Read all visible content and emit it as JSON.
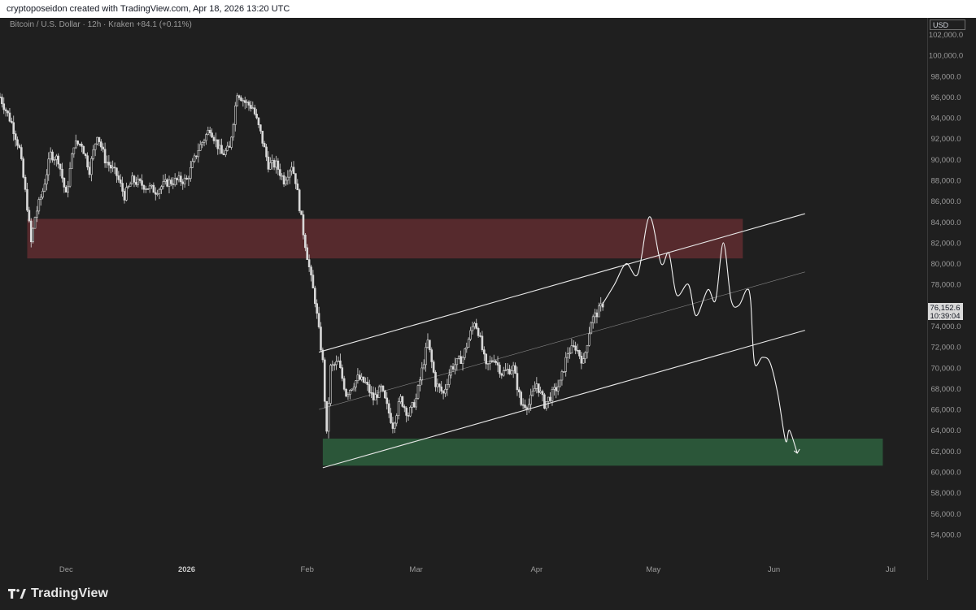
{
  "header": {
    "attribution": "cryptoposeidon created with TradingView.com, Apr 18, 2026 13:20 UTC"
  },
  "symbol": {
    "info": "Bitcoin / U.S. Dollar · 12h · Kraken  +84.1 (+0.11%)"
  },
  "price_scale": {
    "currency": "USD"
  },
  "current_price": {
    "price": "76,152.6",
    "countdown": "10:39:04"
  },
  "brand": {
    "name": "TradingView"
  },
  "colors": {
    "background": "#1f1f1f",
    "candle": "#d9d9d9",
    "resistance_zone": "#5a2b2e",
    "support_zone": "#2c5a3b",
    "channel": "#e8e8e8",
    "projection": "#f2f2f2"
  },
  "chart_data": {
    "type": "line",
    "series_type": "candlestick-like price series with drawings",
    "grid": false,
    "y_axis_ticks": [
      "102,000.0",
      "100,000.0",
      "98,000.0",
      "96,000.0",
      "94,000.0",
      "92,000.0",
      "90,000.0",
      "88,000.0",
      "86,000.0",
      "84,000.0",
      "82,000.0",
      "80,000.0",
      "78,000.0",
      "76,000.0",
      "74,000.0",
      "72,000.0",
      "70,000.0",
      "68,000.0",
      "66,000.0",
      "64,000.0",
      "62,000.0",
      "60,000.0",
      "58,000.0",
      "56,000.0",
      "54,000.0"
    ],
    "ylim": [
      51500,
      103600
    ],
    "x_axis_ticks": [
      {
        "label": "Dec",
        "date": "2025-12-01"
      },
      {
        "label": "2026",
        "date": "2026-01-01"
      },
      {
        "label": "Feb",
        "date": "2026-02-01"
      },
      {
        "label": "Mar",
        "date": "2026-03-01"
      },
      {
        "label": "Apr",
        "date": "2026-04-01"
      },
      {
        "label": "May",
        "date": "2026-05-01"
      },
      {
        "label": "Jun",
        "date": "2026-06-01"
      },
      {
        "label": "Jul",
        "date": "2026-07-01"
      }
    ],
    "xlim": [
      "2025-11-14",
      "2026-07-10"
    ],
    "price_path": [
      [
        "2025-11-14",
        96000
      ],
      [
        "2025-11-17",
        93500
      ],
      [
        "2025-11-19",
        91000
      ],
      [
        "2025-11-21",
        85500
      ],
      [
        "2025-11-22",
        82000
      ],
      [
        "2025-11-23",
        84500
      ],
      [
        "2025-11-25",
        87000
      ],
      [
        "2025-11-27",
        90500
      ],
      [
        "2025-11-29",
        90000
      ],
      [
        "2025-12-01",
        86500
      ],
      [
        "2025-12-03",
        91500
      ],
      [
        "2025-12-05",
        91500
      ],
      [
        "2025-12-07",
        89000
      ],
      [
        "2025-12-09",
        92500
      ],
      [
        "2025-12-11",
        90000
      ],
      [
        "2025-12-14",
        88500
      ],
      [
        "2025-12-16",
        86500
      ],
      [
        "2025-12-18",
        88000
      ],
      [
        "2025-12-21",
        87500
      ],
      [
        "2025-12-24",
        87000
      ],
      [
        "2025-12-27",
        87800
      ],
      [
        "2025-12-30",
        88000
      ],
      [
        "2026-01-01",
        88000
      ],
      [
        "2026-01-04",
        91000
      ],
      [
        "2026-01-07",
        93000
      ],
      [
        "2026-01-10",
        90500
      ],
      [
        "2026-01-12",
        91000
      ],
      [
        "2026-01-14",
        96500
      ],
      [
        "2026-01-16",
        95500
      ],
      [
        "2026-01-18",
        95000
      ],
      [
        "2026-01-20",
        92500
      ],
      [
        "2026-01-22",
        89500
      ],
      [
        "2026-01-24",
        89500
      ],
      [
        "2026-01-26",
        88000
      ],
      [
        "2026-01-28",
        89500
      ],
      [
        "2026-01-29",
        88000
      ],
      [
        "2026-01-31",
        83000
      ],
      [
        "2026-02-02",
        78500
      ],
      [
        "2026-02-03",
        76500
      ],
      [
        "2026-02-05",
        70500
      ],
      [
        "2026-02-06",
        63500
      ],
      [
        "2026-02-07",
        70000
      ],
      [
        "2026-02-09",
        70500
      ],
      [
        "2026-02-11",
        67500
      ],
      [
        "2026-02-14",
        69000
      ],
      [
        "2026-02-16",
        68500
      ],
      [
        "2026-02-18",
        67000
      ],
      [
        "2026-02-20",
        68000
      ],
      [
        "2026-02-23",
        64500
      ],
      [
        "2026-02-25",
        67000
      ],
      [
        "2026-02-27",
        65500
      ],
      [
        "2026-03-01",
        67000
      ],
      [
        "2026-03-04",
        72500
      ],
      [
        "2026-03-06",
        68500
      ],
      [
        "2026-03-08",
        67500
      ],
      [
        "2026-03-10",
        70000
      ],
      [
        "2026-03-13",
        71000
      ],
      [
        "2026-03-16",
        74500
      ],
      [
        "2026-03-17",
        73500
      ],
      [
        "2026-03-19",
        70000
      ],
      [
        "2026-03-21",
        71000
      ],
      [
        "2026-03-23",
        69500
      ],
      [
        "2026-03-26",
        70000
      ],
      [
        "2026-03-28",
        66500
      ],
      [
        "2026-03-30",
        66500
      ],
      [
        "2026-04-01",
        68500
      ],
      [
        "2026-04-03",
        66500
      ],
      [
        "2026-04-05",
        67500
      ],
      [
        "2026-04-07",
        68500
      ],
      [
        "2026-04-09",
        71500
      ],
      [
        "2026-04-11",
        72000
      ],
      [
        "2026-04-13",
        70500
      ],
      [
        "2026-04-15",
        74500
      ],
      [
        "2026-04-17",
        75500
      ],
      [
        "2026-04-18",
        76150
      ]
    ],
    "projection_path": [
      [
        "2026-04-18",
        76152
      ],
      [
        "2026-04-21",
        78000
      ],
      [
        "2026-04-24",
        80000
      ],
      [
        "2026-04-27",
        79000
      ],
      [
        "2026-04-30",
        84500
      ],
      [
        "2026-05-03",
        80000
      ],
      [
        "2026-05-05",
        81000
      ],
      [
        "2026-05-07",
        77000
      ],
      [
        "2026-05-10",
        78000
      ],
      [
        "2026-05-12",
        75000
      ],
      [
        "2026-05-15",
        77500
      ],
      [
        "2026-05-17",
        76500
      ],
      [
        "2026-05-19",
        82000
      ],
      [
        "2026-05-21",
        76500
      ],
      [
        "2026-05-23",
        76000
      ],
      [
        "2026-05-25",
        77500
      ],
      [
        "2026-05-26",
        76500
      ],
      [
        "2026-05-27",
        70500
      ],
      [
        "2026-05-29",
        71000
      ],
      [
        "2026-05-31",
        70500
      ],
      [
        "2026-06-02",
        67500
      ],
      [
        "2026-06-04",
        63000
      ],
      [
        "2026-06-05",
        64000
      ],
      [
        "2026-06-07",
        61800
      ]
    ],
    "channel": {
      "upper": [
        [
          "2026-02-04",
          71500
        ],
        [
          "2026-06-09",
          84800
        ]
      ],
      "middle": [
        [
          "2026-02-04",
          66000
        ],
        [
          "2026-06-09",
          79200
        ]
      ],
      "lower": [
        [
          "2026-02-05",
          60400
        ],
        [
          "2026-06-09",
          73600
        ]
      ]
    },
    "zones": [
      {
        "name": "resistance",
        "from": "2025-11-21",
        "to": "2026-05-24",
        "y_low": 80500,
        "y_high": 84300
      },
      {
        "name": "support",
        "from": "2026-02-05",
        "to": "2026-06-29",
        "y_low": 60600,
        "y_high": 63200
      }
    ]
  }
}
